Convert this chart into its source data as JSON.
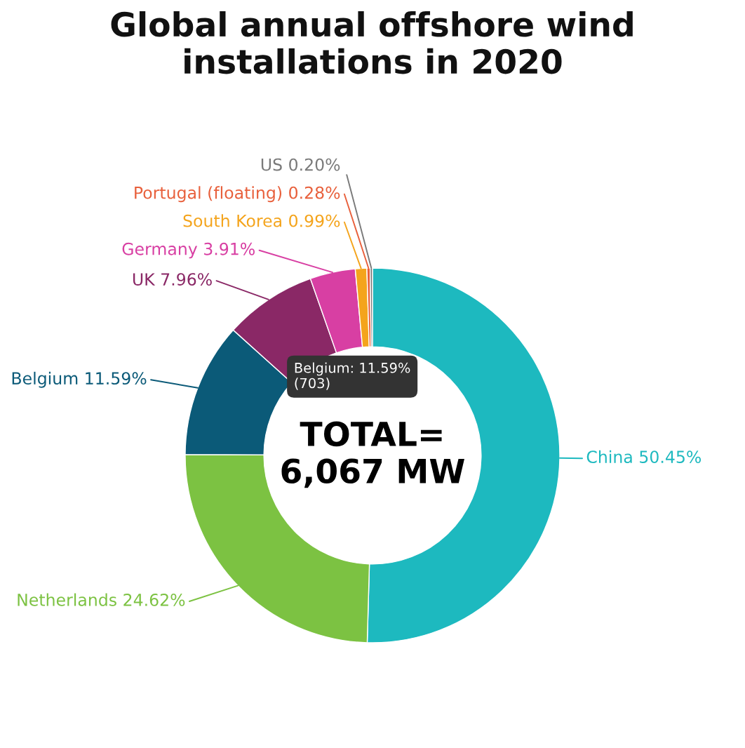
{
  "chart_data": {
    "type": "donut",
    "title": "Global annual offshore wind\ninstallations in 2020",
    "categories": [
      "China",
      "Netherlands",
      "Belgium",
      "UK",
      "Germany",
      "South Korea",
      "Portugal (floating)",
      "US"
    ],
    "values": [
      50.45,
      24.62,
      11.59,
      7.96,
      3.91,
      0.99,
      0.28,
      0.2
    ],
    "value_labels": [
      "50.45%",
      "24.62%",
      "11.59%",
      "7.96%",
      "3.91%",
      "0.99%",
      "0.28%",
      "0.20%"
    ],
    "colors": [
      "#1db9bf",
      "#7cc242",
      "#0b5a78",
      "#8a2866",
      "#d83fa3",
      "#f4a41c",
      "#e8603c",
      "#7a7a7a"
    ],
    "annotations": [
      "TOTAL=\n6,067 MW",
      "Belgium: 11.59%\n(703)"
    ],
    "legend": false
  }
}
